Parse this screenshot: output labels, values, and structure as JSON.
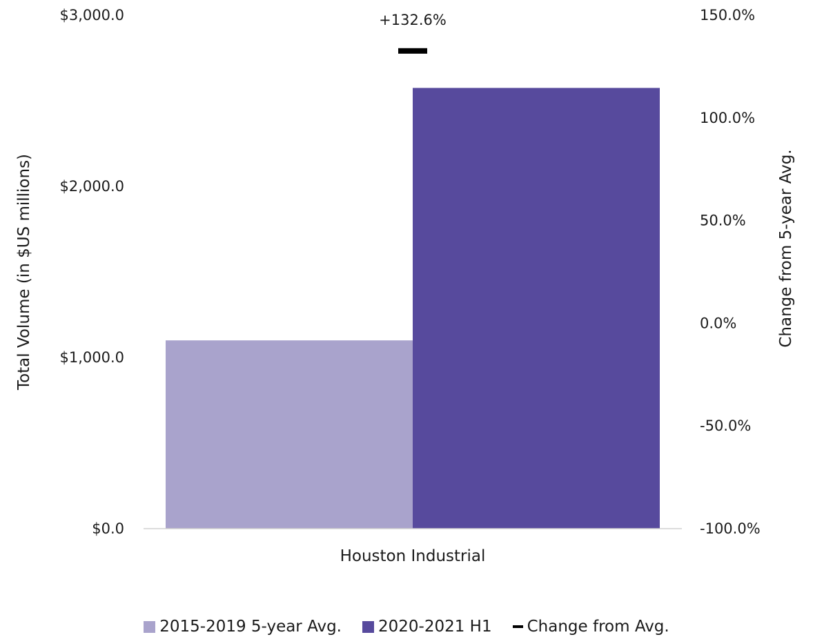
{
  "chart_data": {
    "type": "bar",
    "categories": [
      "Houston Industrial"
    ],
    "series": [
      {
        "name": "2015-2019 5-year Avg.",
        "values": [
          1100
        ],
        "color": "#a9a3cc",
        "axis": "left"
      },
      {
        "name": "2020-2021 H1",
        "values": [
          2575
        ],
        "color": "#574a9d",
        "axis": "left"
      },
      {
        "name": "Change from Avg.",
        "values": [
          132.6
        ],
        "color": "#000000",
        "axis": "right",
        "style": "marker"
      }
    ],
    "ylabel": "Total Volume (in $US millions)",
    "ylim": [
      0,
      3000
    ],
    "yticks": [
      "$0.0",
      "$1,000.0",
      "$2,000.0",
      "$3,000.0"
    ],
    "ytick_values": [
      0,
      1000,
      2000,
      3000
    ],
    "y2label": "Change from 5-year Avg.",
    "y2lim": [
      -100,
      150
    ],
    "y2ticks": [
      "-100.0%",
      "-50.0%",
      "0.0%",
      "50.0%",
      "100.0%",
      "150.0%"
    ],
    "y2tick_values": [
      -100,
      -50,
      0,
      50,
      100,
      150
    ],
    "annotation": "+132.6%",
    "grid": false,
    "legend_position": "bottom"
  }
}
